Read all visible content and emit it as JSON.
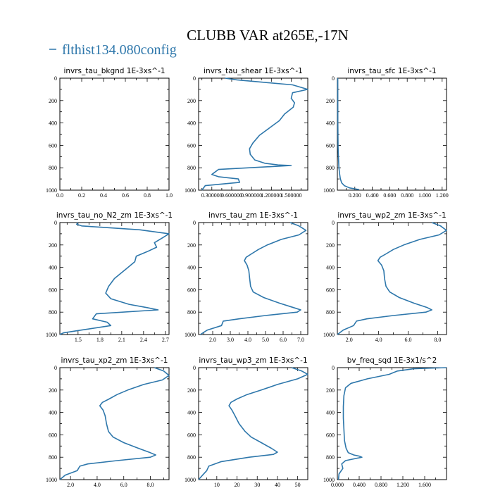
{
  "figure": {
    "title": "CLUBB VAR at265E,-17N",
    "legend_label": "flthist134.080config",
    "line_color": "#2e77ab"
  },
  "chart_data": [
    {
      "type": "line",
      "title": "invrs_tau_bkgnd   1E-3xs^-1",
      "xlim": [
        0,
        1
      ],
      "xticks": [
        0,
        0.2,
        0.4,
        0.6,
        0.8,
        1
      ],
      "xtick_labels": [
        "0.0",
        "0.2",
        "0.4",
        "0.6",
        "0.8",
        "1.0"
      ],
      "ylim": [
        1000,
        0
      ],
      "yticks": [
        0,
        200,
        400,
        600,
        800,
        1000
      ],
      "ytick_labels": [
        "0",
        "200",
        "400",
        "600",
        "800",
        "1000"
      ],
      "series": [
        {
          "x": [],
          "y": []
        }
      ]
    },
    {
      "type": "line",
      "title": "invrs_tau_shear   1E-3xs^-1",
      "xlim": [
        0.1,
        1.75
      ],
      "xticks": [
        0.3,
        0.6,
        0.9,
        1.2,
        1.5
      ],
      "xtick_labels": [
        "0.300000",
        "0.600000",
        "0.900000",
        "1.200000",
        "1.500000"
      ],
      "ylim": [
        1000,
        0
      ],
      "yticks": [
        0,
        200,
        400,
        600,
        800,
        1000
      ],
      "ytick_labels": [
        "0",
        "200",
        "400",
        "600",
        "800",
        "1000"
      ],
      "series": [
        {
          "x": [
            0.5,
            0.68,
            1.05,
            1.52,
            1.75,
            1.52,
            1.5,
            1.55,
            1.53,
            1.4,
            1.32,
            1.18,
            1.02,
            0.92,
            0.87,
            0.88,
            0.95,
            1.1,
            1.3,
            1.5,
            0.4,
            0.3,
            0.4,
            0.7,
            0.72,
            0.2,
            0.15
          ],
          "y": [
            0,
            15,
            35,
            60,
            100,
            130,
            180,
            220,
            260,
            320,
            380,
            440,
            510,
            580,
            630,
            680,
            730,
            760,
            775,
            780,
            815,
            860,
            880,
            900,
            930,
            960,
            1000
          ]
        }
      ]
    },
    {
      "type": "line",
      "title": "invrs_tau_sfc   1E-3xs^-1",
      "xlim": [
        0,
        1.25
      ],
      "xticks": [
        0.2,
        0.4,
        0.6,
        0.8,
        1.0,
        1.2
      ],
      "xtick_labels": [
        "0.200",
        "0.400",
        "0.600",
        "0.800",
        "1.000",
        "1.200"
      ],
      "ylim": [
        1000,
        0
      ],
      "yticks": [
        0,
        200,
        400,
        600,
        800,
        1000
      ],
      "ytick_labels": [
        "0",
        "200",
        "400",
        "600",
        "800",
        "1000"
      ],
      "series": [
        {
          "x": [
            0.005,
            0.006,
            0.008,
            0.012,
            0.018,
            0.025,
            0.035,
            0.05,
            0.08,
            0.14,
            0.25
          ],
          "y": [
            0,
            400,
            600,
            700,
            800,
            850,
            900,
            935,
            960,
            980,
            995
          ]
        }
      ]
    },
    {
      "type": "line",
      "title": "invrs_tau_no_N2_zm   1E-3xs^-1",
      "xlim": [
        1.25,
        2.75
      ],
      "xticks": [
        1.5,
        1.8,
        2.1,
        2.4,
        2.7
      ],
      "xtick_labels": [
        "1.5",
        "1.8",
        "2.1",
        "2.4",
        "2.7"
      ],
      "ylim": [
        1000,
        0
      ],
      "yticks": [
        0,
        200,
        400,
        600,
        800,
        1000
      ],
      "ytick_labels": [
        "0",
        "200",
        "400",
        "600",
        "800",
        "1000"
      ],
      "series": [
        {
          "x": [
            1.5,
            1.48,
            1.55,
            1.9,
            2.35,
            2.75,
            2.65,
            2.55,
            2.58,
            2.45,
            2.3,
            2.28,
            2.15,
            2.0,
            1.92,
            1.88,
            1.95,
            2.2,
            2.45,
            2.6,
            1.75,
            1.7,
            1.9,
            1.95,
            1.55,
            1.3,
            1.25
          ],
          "y": [
            0,
            15,
            30,
            45,
            65,
            100,
            140,
            180,
            220,
            260,
            300,
            350,
            420,
            500,
            570,
            630,
            680,
            730,
            760,
            780,
            815,
            860,
            890,
            920,
            960,
            985,
            1000
          ]
        }
      ]
    },
    {
      "type": "line",
      "title": "invrs_tau_zm   1E-3xs^-1",
      "xlim": [
        1.2,
        7.4
      ],
      "xticks": [
        2.0,
        3.0,
        4.0,
        5.0,
        6.0,
        7.0
      ],
      "xtick_labels": [
        "2.0",
        "3.0",
        "4.0",
        "5.0",
        "6.0",
        "7.0"
      ],
      "ylim": [
        1000,
        0
      ],
      "yticks": [
        0,
        200,
        400,
        600,
        800,
        1000
      ],
      "ytick_labels": [
        "0",
        "200",
        "400",
        "600",
        "800",
        "1000"
      ],
      "series": [
        {
          "x": [
            6.4,
            6.9,
            7.3,
            6.9,
            5.9,
            5.1,
            4.6,
            4.2,
            3.9,
            3.8,
            3.95,
            4.05,
            4.1,
            4.15,
            4.3,
            4.9,
            5.8,
            6.6,
            7.0,
            6.8,
            5.0,
            3.5,
            2.6,
            2.5,
            1.7,
            1.3
          ],
          "y": [
            0,
            30,
            70,
            110,
            150,
            200,
            240,
            280,
            310,
            340,
            380,
            430,
            500,
            570,
            620,
            670,
            720,
            760,
            780,
            800,
            830,
            860,
            880,
            920,
            960,
            1000
          ]
        }
      ]
    },
    {
      "type": "line",
      "title": "invrs_tau_wp2_zm   1E-3xs^-1",
      "xlim": [
        1.2,
        8.6
      ],
      "xticks": [
        2.0,
        4.0,
        6.0,
        8.0
      ],
      "xtick_labels": [
        "2.0",
        "4.0",
        "6.0",
        "8.0"
      ],
      "ylim": [
        1000,
        0
      ],
      "yticks": [
        0,
        200,
        400,
        600,
        800,
        1000
      ],
      "ytick_labels": [
        "0",
        "200",
        "400",
        "600",
        "800",
        "1000"
      ],
      "series": [
        {
          "x": [
            7.6,
            8.2,
            8.6,
            8.1,
            6.8,
            5.7,
            5.0,
            4.5,
            4.1,
            3.95,
            4.2,
            4.35,
            4.4,
            4.5,
            4.75,
            5.4,
            6.4,
            7.3,
            7.6,
            7.2,
            5.0,
            3.2,
            2.5,
            2.3,
            1.6,
            1.2
          ],
          "y": [
            0,
            30,
            70,
            110,
            150,
            200,
            240,
            280,
            310,
            340,
            380,
            430,
            500,
            570,
            620,
            670,
            720,
            760,
            780,
            800,
            830,
            860,
            880,
            920,
            960,
            1000
          ]
        }
      ]
    },
    {
      "type": "line",
      "title": "invrs_tau_xp2_zm   1E-3xs^-1",
      "xlim": [
        1.2,
        9.4
      ],
      "xticks": [
        2.0,
        4.0,
        6.0,
        8.0
      ],
      "xtick_labels": [
        "2.0",
        "4.0",
        "6.0",
        "8.0"
      ],
      "ylim": [
        1000,
        0
      ],
      "yticks": [
        0,
        200,
        400,
        600,
        800,
        1000
      ],
      "ytick_labels": [
        "0",
        "200",
        "400",
        "600",
        "800",
        "1000"
      ],
      "series": [
        {
          "x": [
            8.3,
            9.0,
            9.4,
            8.9,
            7.5,
            6.3,
            5.5,
            4.9,
            4.4,
            4.2,
            4.45,
            4.6,
            4.7,
            4.85,
            5.2,
            6.0,
            7.1,
            8.0,
            8.4,
            8.0,
            5.5,
            3.3,
            2.7,
            2.5,
            1.6,
            1.2
          ],
          "y": [
            0,
            30,
            70,
            110,
            150,
            200,
            240,
            280,
            310,
            340,
            380,
            430,
            500,
            570,
            620,
            670,
            720,
            760,
            780,
            800,
            830,
            860,
            880,
            920,
            960,
            1000
          ]
        }
      ]
    },
    {
      "type": "line",
      "title": "invrs_tau_wp3_zm   1E-3xs^-1",
      "xlim": [
        1,
        55
      ],
      "xticks": [
        10,
        20,
        30,
        40,
        50
      ],
      "xtick_labels": [
        "10",
        "20",
        "30",
        "40",
        "50"
      ],
      "ylim": [
        1000,
        0
      ],
      "yticks": [
        0,
        200,
        400,
        600,
        800,
        1000
      ],
      "ytick_labels": [
        "0",
        "200",
        "400",
        "600",
        "800",
        "1000"
      ],
      "series": [
        {
          "x": [
            47,
            52,
            55,
            50,
            40,
            32,
            25,
            20,
            17,
            16,
            17.5,
            19,
            21,
            24,
            27,
            32,
            37,
            40,
            38,
            26,
            12,
            6,
            5,
            3,
            1
          ],
          "y": [
            0,
            30,
            60,
            100,
            150,
            200,
            240,
            280,
            310,
            340,
            380,
            430,
            500,
            570,
            620,
            670,
            720,
            755,
            775,
            800,
            840,
            880,
            920,
            960,
            1000
          ]
        }
      ]
    },
    {
      "type": "line",
      "title": "bv_freq_sqd   1E-3x1/s^2",
      "xlim": [
        0,
        2
      ],
      "xticks": [
        0,
        0.4,
        0.8,
        1.2,
        1.6
      ],
      "xtick_labels": [
        "0.000",
        "0.400",
        "0.800",
        "1.200",
        "1.600"
      ],
      "ylim": [
        1000,
        0
      ],
      "yticks": [
        0,
        200,
        400,
        600,
        800,
        1000
      ],
      "ytick_labels": [
        "0",
        "200",
        "400",
        "600",
        "800",
        "1000"
      ],
      "series": [
        {
          "x": [
            2.0,
            1.4,
            1.1,
            0.95,
            0.55,
            0.25,
            0.15,
            0.12,
            0.11,
            0.11,
            0.12,
            0.13,
            0.16,
            0.2,
            0.3,
            0.4,
            0.45,
            0.15,
            0.08,
            0.1,
            0.03,
            0.02
          ],
          "y": [
            0,
            10,
            30,
            60,
            100,
            140,
            180,
            250,
            350,
            450,
            550,
            650,
            720,
            760,
            780,
            790,
            800,
            830,
            860,
            900,
            950,
            1000
          ]
        }
      ]
    }
  ]
}
